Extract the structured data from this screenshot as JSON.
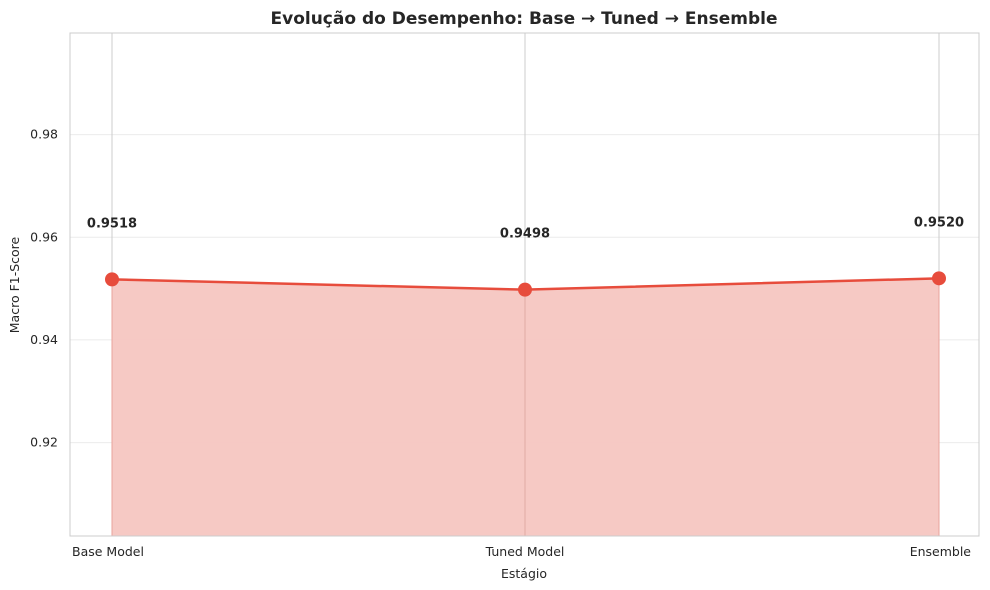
{
  "chart_data": {
    "type": "area",
    "title": "Evolução do Desempenho: Base → Tuned → Ensemble",
    "xlabel": "Estágio",
    "ylabel": "Macro F1-Score",
    "categories": [
      "Base Model",
      "Tuned Model",
      "Ensemble"
    ],
    "series": [
      {
        "values": [
          0.9518,
          0.9498,
          0.952
        ]
      }
    ],
    "data_labels": [
      "0.9518",
      "0.9498",
      "0.9520"
    ],
    "ylim": [
      0.9018,
      0.9998
    ],
    "yticks": [
      0.92,
      0.94,
      0.96,
      0.98
    ],
    "ytick_labels": [
      "0.92",
      "0.94",
      "0.96",
      "0.98"
    ],
    "grid": true,
    "colors": {
      "line": "#e74c3c",
      "fill": "#f5c6c1",
      "grid": "#ebebeb",
      "axes": "#cccccc"
    }
  }
}
